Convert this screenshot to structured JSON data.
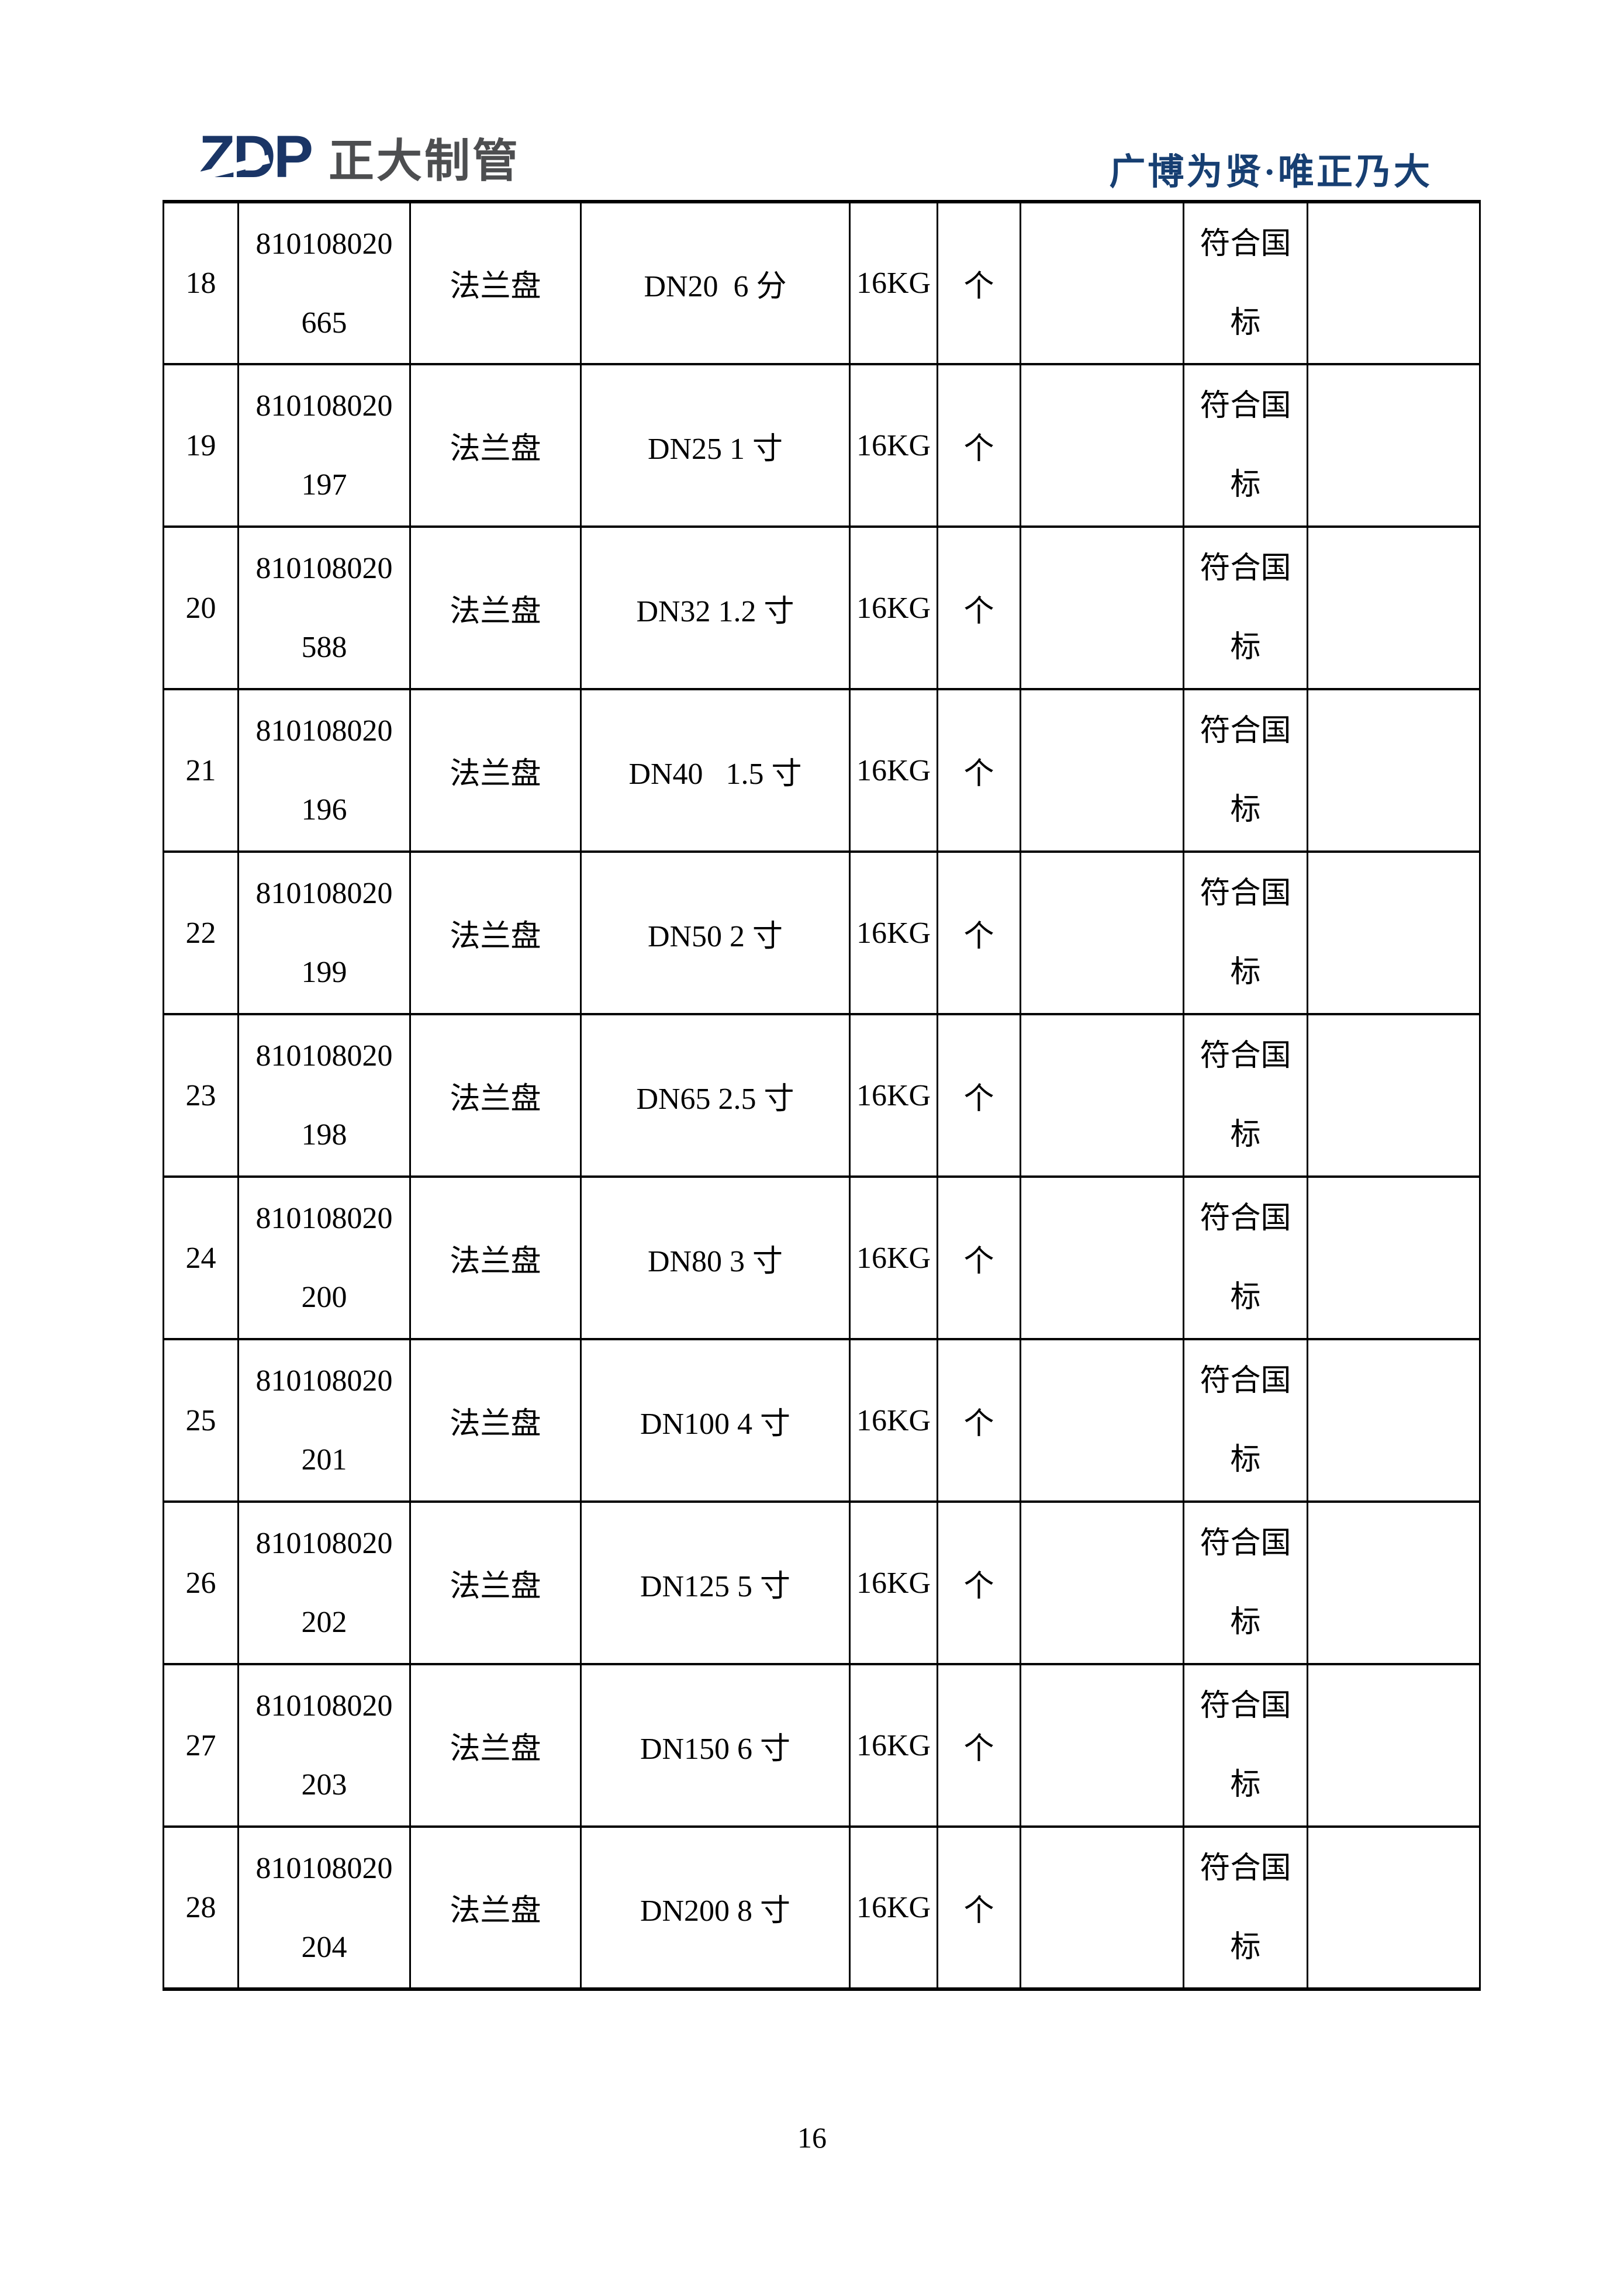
{
  "colors": {
    "logo_navy": "#1a3566",
    "logo_gray": "#4d4e50",
    "slogan_navy": "#173f72"
  },
  "header": {
    "logo_zdp": "ZDP",
    "logo_name": "正大制管",
    "slogan": "广博为贤·唯正乃大"
  },
  "table": {
    "rows": [
      {
        "no": "18",
        "code": [
          "810108020",
          "665"
        ],
        "name": "法兰盘",
        "spec": "DN20  6 分",
        "pressure": "16KG",
        "unit": "个",
        "col7": "",
        "standard": [
          "符合国",
          "标"
        ],
        "col9": ""
      },
      {
        "no": "19",
        "code": [
          "810108020",
          "197"
        ],
        "name": "法兰盘",
        "spec": "DN25 1 寸",
        "pressure": "16KG",
        "unit": "个",
        "col7": "",
        "standard": [
          "符合国",
          "标"
        ],
        "col9": ""
      },
      {
        "no": "20",
        "code": [
          "810108020",
          "588"
        ],
        "name": "法兰盘",
        "spec": "DN32 1.2 寸",
        "pressure": "16KG",
        "unit": "个",
        "col7": "",
        "standard": [
          "符合国",
          "标"
        ],
        "col9": ""
      },
      {
        "no": "21",
        "code": [
          "810108020",
          "196"
        ],
        "name": "法兰盘",
        "spec": "DN40   1.5 寸",
        "pressure": "16KG",
        "unit": "个",
        "col7": "",
        "standard": [
          "符合国",
          "标"
        ],
        "col9": ""
      },
      {
        "no": "22",
        "code": [
          "810108020",
          "199"
        ],
        "name": "法兰盘",
        "spec": "DN50 2 寸",
        "pressure": "16KG",
        "unit": "个",
        "col7": "",
        "standard": [
          "符合国",
          "标"
        ],
        "col9": ""
      },
      {
        "no": "23",
        "code": [
          "810108020",
          "198"
        ],
        "name": "法兰盘",
        "spec": "DN65 2.5 寸",
        "pressure": "16KG",
        "unit": "个",
        "col7": "",
        "standard": [
          "符合国",
          "标"
        ],
        "col9": ""
      },
      {
        "no": "24",
        "code": [
          "810108020",
          "200"
        ],
        "name": "法兰盘",
        "spec": "DN80 3 寸",
        "pressure": "16KG",
        "unit": "个",
        "col7": "",
        "standard": [
          "符合国",
          "标"
        ],
        "col9": ""
      },
      {
        "no": "25",
        "code": [
          "810108020",
          "201"
        ],
        "name": "法兰盘",
        "spec": "DN100 4 寸",
        "pressure": "16KG",
        "unit": "个",
        "col7": "",
        "standard": [
          "符合国",
          "标"
        ],
        "col9": ""
      },
      {
        "no": "26",
        "code": [
          "810108020",
          "202"
        ],
        "name": "法兰盘",
        "spec": "DN125 5 寸",
        "pressure": "16KG",
        "unit": "个",
        "col7": "",
        "standard": [
          "符合国",
          "标"
        ],
        "col9": ""
      },
      {
        "no": "27",
        "code": [
          "810108020",
          "203"
        ],
        "name": "法兰盘",
        "spec": "DN150 6 寸",
        "pressure": "16KG",
        "unit": "个",
        "col7": "",
        "standard": [
          "符合国",
          "标"
        ],
        "col9": ""
      },
      {
        "no": "28",
        "code": [
          "810108020",
          "204"
        ],
        "name": "法兰盘",
        "spec": "DN200 8 寸",
        "pressure": "16KG",
        "unit": "个",
        "col7": "",
        "standard": [
          "符合国",
          "标"
        ],
        "col9": ""
      }
    ]
  },
  "footer": {
    "page_number": "16"
  }
}
